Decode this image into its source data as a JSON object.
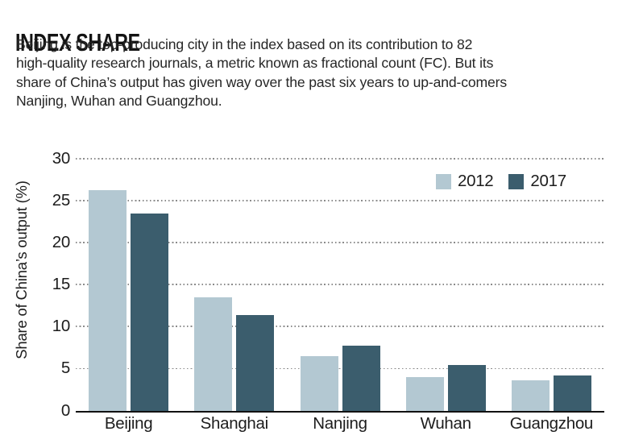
{
  "header": {
    "title": "INDEX SHARE",
    "description_lines": [
      "Beijing is the top-producing city in the index based on its contribution to 82",
      "high-quality research journals, a metric known as fractional count (FC). But its",
      "share of China’s output has given way over the past six years to up-and-comers",
      "Nanjing, Wuhan and Guangzhou."
    ]
  },
  "chart_data": {
    "type": "bar",
    "title": "",
    "categories": [
      "Beijing",
      "Shanghai",
      "Nanjing",
      "Wuhan",
      "Guangzhou"
    ],
    "series": [
      {
        "name": "2012",
        "color": "#b3c8d2",
        "values": [
          26.3,
          13.5,
          6.5,
          4.0,
          3.6
        ]
      },
      {
        "name": "2017",
        "color": "#3b5d6d",
        "values": [
          23.5,
          11.4,
          7.7,
          5.4,
          4.2
        ]
      }
    ],
    "xlabel": "",
    "ylabel": "Share of China’s output (%)",
    "yticks": [
      0,
      5,
      10,
      15,
      20,
      25,
      30
    ],
    "ylim": [
      0,
      30
    ],
    "grid": "horizontal-dotted",
    "legend_position": "top-right",
    "colors": {
      "grid": "#8b8b8b",
      "axis": "#111111",
      "text": "#1d1d1d"
    }
  }
}
